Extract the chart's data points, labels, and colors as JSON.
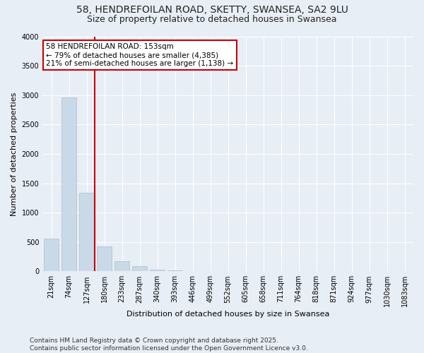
{
  "title": "58, HENDREFOILAN ROAD, SKETTY, SWANSEA, SA2 9LU",
  "subtitle": "Size of property relative to detached houses in Swansea",
  "xlabel": "Distribution of detached houses by size in Swansea",
  "ylabel": "Number of detached properties",
  "categories": [
    "21sqm",
    "74sqm",
    "127sqm",
    "180sqm",
    "233sqm",
    "287sqm",
    "340sqm",
    "393sqm",
    "446sqm",
    "499sqm",
    "552sqm",
    "605sqm",
    "658sqm",
    "711sqm",
    "764sqm",
    "818sqm",
    "871sqm",
    "924sqm",
    "977sqm",
    "1030sqm",
    "1083sqm"
  ],
  "values": [
    560,
    2960,
    1340,
    430,
    170,
    90,
    30,
    15,
    5,
    0,
    0,
    0,
    0,
    0,
    0,
    0,
    0,
    0,
    0,
    0,
    0
  ],
  "bar_color": "#c9d9e8",
  "bar_edge_color": "#a8becd",
  "property_line_x": 2.47,
  "property_line_color": "#cc0000",
  "annotation_text": "58 HENDREFOILAN ROAD: 153sqm\n← 79% of detached houses are smaller (4,385)\n21% of semi-detached houses are larger (1,138) →",
  "annotation_box_color": "#cc0000",
  "annotation_bg": "#ffffff",
  "ylim": [
    0,
    4000
  ],
  "yticks": [
    0,
    500,
    1000,
    1500,
    2000,
    2500,
    3000,
    3500,
    4000
  ],
  "background_color": "#e8eef5",
  "plot_bg_color": "#e8eef5",
  "footer": "Contains HM Land Registry data © Crown copyright and database right 2025.\nContains public sector information licensed under the Open Government Licence v3.0.",
  "title_fontsize": 10,
  "subtitle_fontsize": 9,
  "axis_label_fontsize": 8,
  "tick_fontsize": 7,
  "annotation_fontsize": 7.5,
  "footer_fontsize": 6.5
}
